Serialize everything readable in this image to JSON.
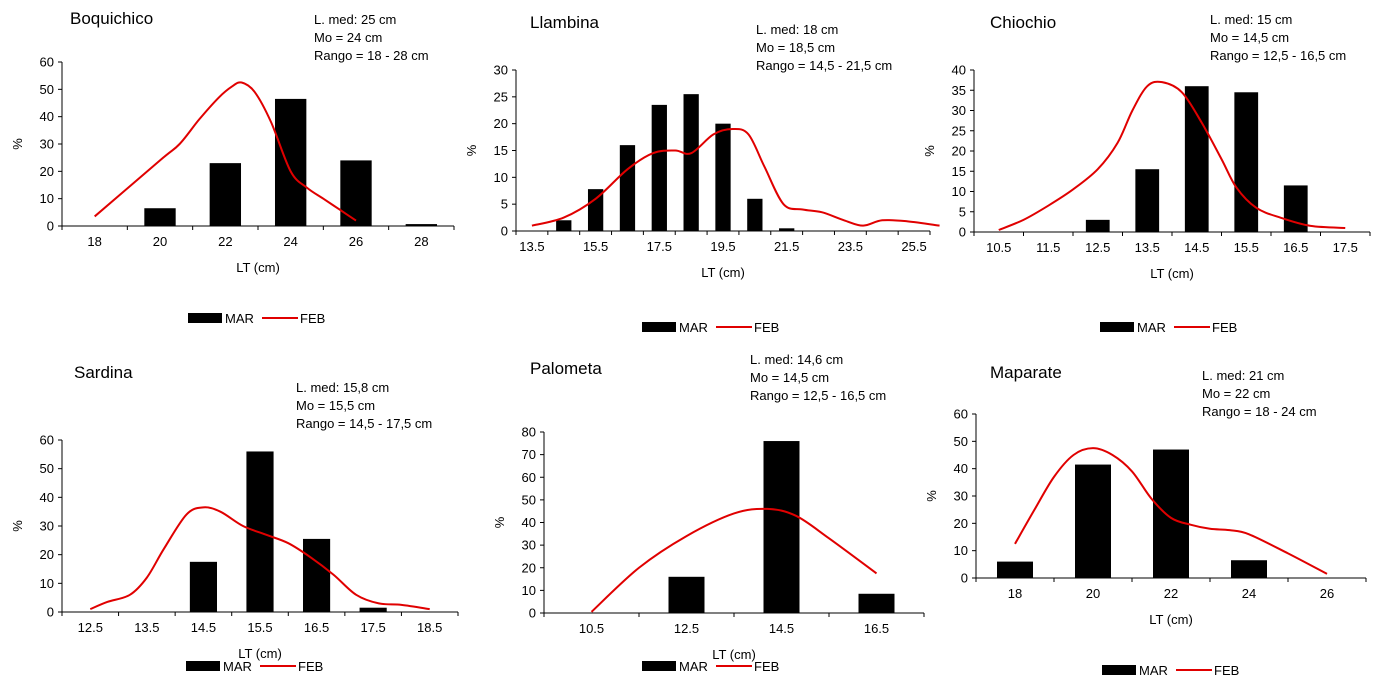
{
  "legend": {
    "bar_label": "MAR",
    "line_label": "FEB"
  },
  "colors": {
    "bar": "#000000",
    "line": "#e00000"
  },
  "chart_data": [
    {
      "type": "bar",
      "title": "Boquichico",
      "notes": [
        "L. med: 25 cm",
        "Mo = 24 cm",
        "Rango = 18 - 28 cm"
      ],
      "xlabel": "LT (cm)",
      "ylabel": "%",
      "categories": [
        "18",
        "20",
        "22",
        "24",
        "26",
        "28"
      ],
      "ylim": [
        0,
        60
      ],
      "yticks": [
        0,
        10,
        20,
        30,
        40,
        50,
        60
      ],
      "series": [
        {
          "name": "MAR",
          "type": "bar",
          "values": [
            0,
            6.5,
            23,
            46.5,
            24,
            0.7
          ]
        },
        {
          "name": "FEB",
          "type": "line",
          "x": [
            18,
            20,
            20.6,
            21.2,
            21.8,
            22.2,
            22.5,
            22.9,
            23.4,
            24,
            24.5,
            25,
            25.5,
            26
          ],
          "values": [
            3.5,
            24,
            30,
            39,
            47,
            51,
            52.5,
            49,
            38,
            20,
            14,
            10,
            6,
            2
          ]
        }
      ]
    },
    {
      "type": "bar",
      "title": "Llambina",
      "notes": [
        "L. med: 18 cm",
        "Mo = 18,5 cm",
        "Rango = 14,5 - 21,5 cm"
      ],
      "xlabel": "LT (cm)",
      "ylabel": "%",
      "categories": [
        "13.5",
        "14.5",
        "15.5",
        "16.5",
        "17.5",
        "18.5",
        "19.5",
        "20.5",
        "21.5",
        "22.5",
        "23.5",
        "24.5",
        "25.5"
      ],
      "ticklabels": [
        "13.5",
        "15.5",
        "17.5",
        "19.5",
        "21.5",
        "23.5",
        "25.5"
      ],
      "ylim": [
        0,
        30
      ],
      "yticks": [
        0,
        5,
        10,
        15,
        20,
        25,
        30
      ],
      "series": [
        {
          "name": "MAR",
          "type": "bar",
          "values": [
            0,
            2,
            7.8,
            16,
            23.5,
            25.5,
            20,
            6,
            0.5,
            0,
            0,
            0,
            0
          ]
        },
        {
          "name": "FEB",
          "type": "line",
          "x": [
            13.5,
            14.5,
            15.5,
            16.5,
            17.3,
            18,
            18.5,
            19.2,
            19.8,
            20.3,
            20.8,
            21.4,
            22,
            22.6,
            23.3,
            23.9,
            24.5,
            25.3,
            26.3
          ],
          "values": [
            1,
            2.5,
            6,
            11.5,
            14.5,
            15,
            14.5,
            18,
            19,
            18,
            12,
            5,
            4,
            3.5,
            2,
            1,
            2,
            1.8,
            1
          ]
        }
      ]
    },
    {
      "type": "bar",
      "title": "Chiochio",
      "notes": [
        "L. med: 15 cm",
        "Mo = 14,5 cm",
        "Rango = 12,5 - 16,5 cm"
      ],
      "xlabel": "LT (cm)",
      "ylabel": "%",
      "categories": [
        "10.5",
        "11.5",
        "12.5",
        "13.5",
        "14.5",
        "15.5",
        "16.5",
        "17.5"
      ],
      "ylim": [
        0,
        40
      ],
      "yticks": [
        0,
        5,
        10,
        15,
        20,
        25,
        30,
        35,
        40
      ],
      "series": [
        {
          "name": "MAR",
          "type": "bar",
          "values": [
            0,
            0,
            3,
            15.5,
            36,
            34.5,
            11.5,
            0
          ]
        },
        {
          "name": "FEB",
          "type": "line",
          "x": [
            10.5,
            11,
            11.5,
            12,
            12.5,
            12.9,
            13.2,
            13.5,
            13.8,
            14.2,
            14.6,
            15,
            15.3,
            15.7,
            16.2,
            16.8,
            17.5
          ],
          "values": [
            0.5,
            3,
            6.5,
            10.5,
            15.5,
            22,
            30,
            36,
            37,
            34.5,
            27,
            18,
            11,
            6,
            3.5,
            1.5,
            1
          ]
        }
      ]
    },
    {
      "type": "bar",
      "title": "Sardina",
      "notes": [
        "L. med: 15,8 cm",
        "Mo = 15,5 cm",
        "Rango =  14,5 - 17,5 cm"
      ],
      "xlabel": "LT (cm)",
      "ylabel": "%",
      "categories": [
        "12.5",
        "13.5",
        "14.5",
        "15.5",
        "16.5",
        "17.5",
        "18.5"
      ],
      "ylim": [
        0,
        60
      ],
      "yticks": [
        0,
        10,
        20,
        30,
        40,
        50,
        60
      ],
      "series": [
        {
          "name": "MAR",
          "type": "bar",
          "values": [
            0,
            0,
            17.5,
            56,
            25.5,
            1.5,
            0
          ]
        },
        {
          "name": "FEB",
          "type": "line",
          "x": [
            12.5,
            12.8,
            13.2,
            13.5,
            13.8,
            14.2,
            14.5,
            14.8,
            15.2,
            15.6,
            16,
            16.4,
            16.8,
            17.2,
            17.6,
            18,
            18.5
          ],
          "values": [
            1,
            3.5,
            6,
            12,
            22,
            34,
            36.5,
            35,
            30,
            27,
            24,
            19,
            13,
            6,
            3,
            2.5,
            1
          ]
        }
      ]
    },
    {
      "type": "bar",
      "title": "Palometa",
      "notes": [
        "L. med: 14,6 cm",
        "Mo = 14,5 cm",
        "Rango = 12,5 - 16,5 cm"
      ],
      "xlabel": "LT (cm)",
      "ylabel": "%",
      "categories": [
        "10.5",
        "12.5",
        "14.5",
        "16.5"
      ],
      "ylim": [
        0,
        80
      ],
      "yticks": [
        0,
        10,
        20,
        30,
        40,
        50,
        60,
        70,
        80
      ],
      "series": [
        {
          "name": "MAR",
          "type": "bar",
          "values": [
            0,
            16,
            76,
            8.5
          ]
        },
        {
          "name": "FEB",
          "type": "line",
          "x": [
            10.5,
            11.5,
            12.5,
            13.5,
            14.2,
            14.8,
            15.5,
            16.5
          ],
          "values": [
            0.5,
            20,
            34,
            44,
            46,
            43,
            33,
            17.5
          ]
        }
      ]
    },
    {
      "type": "bar",
      "title": "Maparate",
      "notes": [
        "L. med: 21 cm",
        "Mo = 22 cm",
        "Rango = 18 - 24 cm"
      ],
      "xlabel": "LT (cm)",
      "ylabel": "%",
      "categories": [
        "18",
        "20",
        "22",
        "24",
        "26"
      ],
      "ylim": [
        0,
        60
      ],
      "yticks": [
        0,
        10,
        20,
        30,
        40,
        50,
        60
      ],
      "series": [
        {
          "name": "MAR",
          "type": "bar",
          "values": [
            6,
            41.5,
            47,
            6.5,
            0
          ]
        },
        {
          "name": "FEB",
          "type": "line",
          "x": [
            18,
            18.5,
            19,
            19.5,
            20,
            20.5,
            21,
            21.5,
            22,
            22.5,
            23,
            23.5,
            24,
            25,
            26
          ],
          "values": [
            12.5,
            25,
            37,
            45,
            47.5,
            45,
            39,
            29,
            22,
            19.5,
            18,
            17.5,
            16,
            9,
            1.5
          ]
        }
      ]
    }
  ]
}
